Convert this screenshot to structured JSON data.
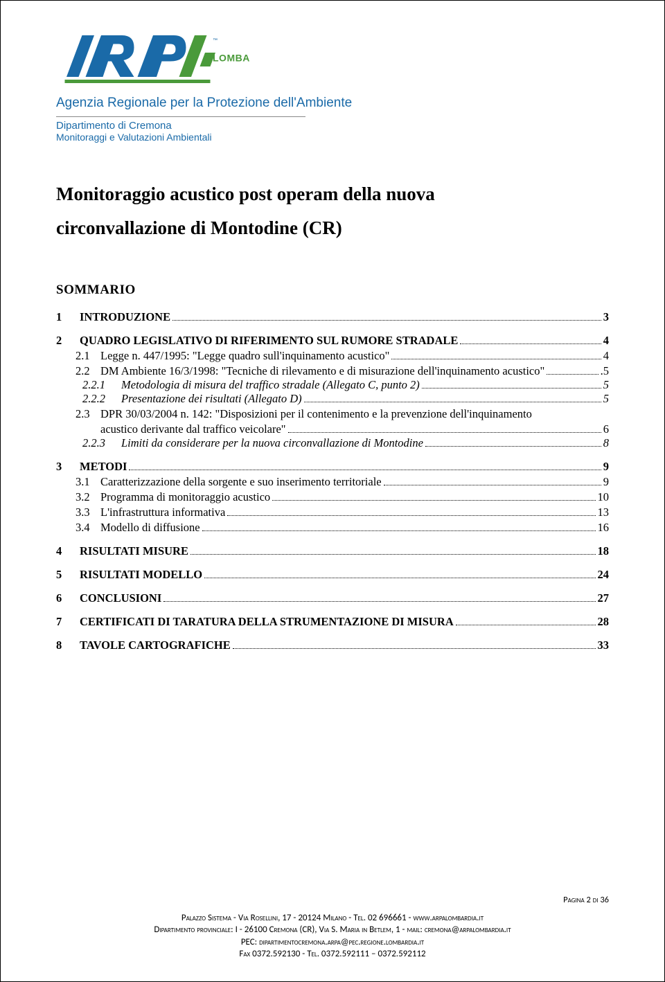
{
  "logo": {
    "brand_main": "ARPA",
    "brand_sub": "LOMBARDIA",
    "tm": "™",
    "colors": {
      "brand_blue": "#1a6aa8",
      "brand_green": "#4a9a3a"
    }
  },
  "header": {
    "agency": "Agenzia Regionale per la Protezione dell'Ambiente",
    "dept1": "Dipartimento di Cremona",
    "dept2": "Monitoraggi e Valutazioni Ambientali"
  },
  "title_line1": "Monitoraggio acustico post operam della nuova",
  "title_line2": "circonvallazione di Montodine (CR)",
  "sommario": "SOMMARIO",
  "toc": [
    {
      "lvl": 1,
      "num": "1",
      "text": "INTRODUZIONE",
      "page": "3"
    },
    {
      "lvl": 1,
      "num": "2",
      "text": "QUADRO LEGISLATIVO DI RIFERIMENTO SUL RUMORE STRADALE",
      "page": "4"
    },
    {
      "lvl": 2,
      "num": "2.1",
      "text": "Legge n. 447/1995: \"Legge quadro sull'inquinamento acustico\"",
      "page": "4"
    },
    {
      "lvl": 2,
      "num": "2.2",
      "text": "DM Ambiente 16/3/1998: \"Tecniche di rilevamento e di misurazione dell'inquinamento acustico\"",
      "page": ".5"
    },
    {
      "lvl": 3,
      "num": "2.2.1",
      "text": "Metodologia di misura del traffico stradale (Allegato C, punto 2)",
      "page": "5"
    },
    {
      "lvl": 3,
      "num": "2.2.2",
      "text": "Presentazione dei risultati (Allegato D)",
      "page": "5"
    },
    {
      "lvl": 2,
      "num": "2.3",
      "text": "DPR 30/03/2004 n. 142: \"Disposizioni per il contenimento e la prevenzione dell'inquinamento",
      "cont": "acustico derivante dal traffico veicolare\"",
      "page": "6"
    },
    {
      "lvl": 3,
      "num": "2.2.3",
      "text": "Limiti da considerare per la nuova circonvallazione di Montodine",
      "page": "8"
    },
    {
      "lvl": 1,
      "num": "3",
      "text": "METODI",
      "page": "9"
    },
    {
      "lvl": 2,
      "num": "3.1",
      "text": "Caratterizzazione della sorgente e suo inserimento territoriale",
      "page": "9"
    },
    {
      "lvl": 2,
      "num": "3.2",
      "text": "Programma di monitoraggio acustico",
      "page": "10"
    },
    {
      "lvl": 2,
      "num": "3.3",
      "text": "L'infrastruttura informativa",
      "page": "13"
    },
    {
      "lvl": 2,
      "num": "3.4",
      "text": "Modello di diffusione",
      "page": "16"
    },
    {
      "lvl": 1,
      "num": "4",
      "text": "RISULTATI MISURE",
      "page": "18"
    },
    {
      "lvl": 1,
      "num": "5",
      "text": "RISULTATI MODELLO",
      "page": "24"
    },
    {
      "lvl": 1,
      "num": "6",
      "text": "CONCLUSIONI",
      "page": "27"
    },
    {
      "lvl": 1,
      "num": "7",
      "text": "CERTIFICATI DI TARATURA DELLA STRUMENTAZIONE DI MISURA",
      "page": "28"
    },
    {
      "lvl": 1,
      "num": "8",
      "text": "TAVOLE CARTOGRAFICHE",
      "page": "33"
    }
  ],
  "pagenum": "Pagina 2 di 36",
  "footer": {
    "l1a": "Palazzo Sistema - Via Rosellini, 17 - 20124 Milano - Tel. ",
    "l1b": "02 696661 - ",
    "l1c": "www.arpalombardia.it",
    "l2a": "Dipartimento provinciale: I - 26100 Cremona (CR), Via S. Maria in Betlem, 1 - mail: cremona@arpalombardia.it",
    "l3a": "PEC: ",
    "l3b": "dipartimentocremona.arpa@pec.regione.lombardia.it",
    "l4a": "Fax 0372.592130 - Tel. 0372.592111 – 0372.592112"
  }
}
